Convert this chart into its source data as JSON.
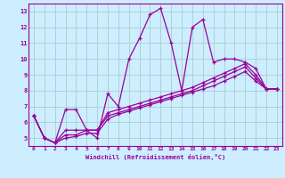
{
  "xlabel": "Windchill (Refroidissement éolien,°C)",
  "bg_color": "#cceeff",
  "line_color": "#990099",
  "grid_color": "#aacccc",
  "xlim": [
    -0.5,
    23.5
  ],
  "ylim": [
    4.5,
    13.5
  ],
  "xticks": [
    0,
    1,
    2,
    3,
    4,
    5,
    6,
    7,
    8,
    9,
    10,
    11,
    12,
    13,
    14,
    15,
    16,
    17,
    18,
    19,
    20,
    21,
    22,
    23
  ],
  "yticks": [
    5,
    6,
    7,
    8,
    9,
    10,
    11,
    12,
    13
  ],
  "series": [
    [
      6.4,
      5.0,
      4.7,
      6.8,
      6.8,
      5.5,
      5.0,
      7.8,
      7.0,
      10.0,
      11.3,
      12.8,
      13.2,
      11.0,
      8.0,
      12.0,
      12.5,
      9.8,
      10.0,
      10.0,
      9.8,
      9.4,
      8.1,
      8.1
    ],
    [
      6.4,
      5.0,
      4.7,
      5.5,
      5.5,
      5.5,
      5.5,
      6.6,
      6.8,
      7.0,
      7.2,
      7.4,
      7.6,
      7.8,
      8.0,
      8.2,
      8.5,
      8.8,
      9.1,
      9.4,
      9.7,
      9.0,
      8.1,
      8.1
    ],
    [
      6.4,
      5.0,
      4.7,
      5.2,
      5.2,
      5.5,
      5.5,
      6.4,
      6.6,
      6.8,
      7.0,
      7.2,
      7.4,
      7.6,
      7.8,
      8.0,
      8.3,
      8.6,
      8.9,
      9.2,
      9.5,
      8.8,
      8.1,
      8.1
    ],
    [
      6.4,
      5.0,
      4.7,
      5.0,
      5.1,
      5.3,
      5.3,
      6.2,
      6.5,
      6.7,
      6.9,
      7.1,
      7.3,
      7.5,
      7.7,
      7.9,
      8.1,
      8.3,
      8.6,
      8.9,
      9.2,
      8.6,
      8.1,
      8.1
    ]
  ]
}
